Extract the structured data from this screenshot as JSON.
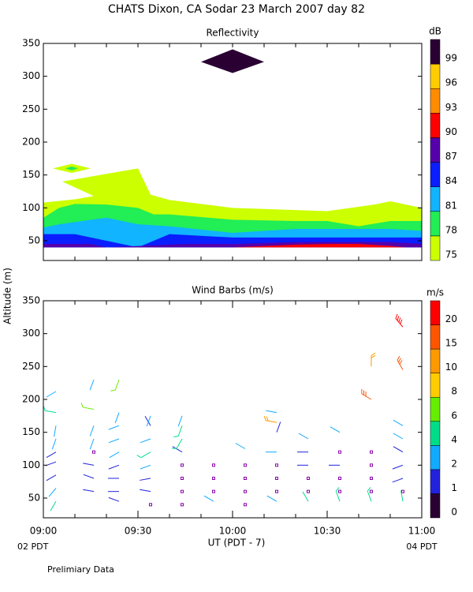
{
  "title": "CHATS Dixon, CA   Sodar  23 March 2007   day  82",
  "footnote": "Prelimiary Data",
  "chart_data": [
    {
      "type": "contour",
      "title": "Reflectivity",
      "unit": "dB",
      "xlim": [
        540,
        660
      ],
      "xminor": [
        540,
        550,
        560,
        570,
        580,
        590,
        600,
        610,
        620,
        630,
        640,
        650,
        660
      ],
      "ylim": [
        20,
        350
      ],
      "yticks": [
        50,
        100,
        150,
        200,
        250,
        300,
        350
      ],
      "levels": [
        75,
        78,
        81,
        84,
        87,
        90,
        93,
        96,
        99
      ],
      "colors": [
        "#ccff00",
        "#22ee55",
        "#11b4ff",
        "#0a1eff",
        "#5500aa",
        "#ff0000",
        "#ff8c00",
        "#ffcc00",
        "#2a0033"
      ],
      "regions": [
        {
          "level": 75,
          "x": [
            540,
            540,
            550,
            556,
            546,
            570,
            574,
            580,
            600,
            630,
            645,
            650,
            660,
            660
          ],
          "y": [
            40,
            108,
            113,
            118,
            140,
            160,
            120,
            112,
            100,
            95,
            105,
            110,
            100,
            40
          ]
        },
        {
          "level": 75,
          "x": [
            543,
            549,
            555,
            549
          ],
          "y": [
            160,
            167,
            160,
            153
          ]
        },
        {
          "level": 78,
          "x": [
            547,
            549,
            551,
            549
          ],
          "y": [
            160,
            163,
            160,
            157
          ]
        },
        {
          "level": 78,
          "x": [
            540,
            540,
            545,
            550,
            560,
            570,
            575,
            580,
            600,
            620,
            630,
            640,
            650,
            660,
            660
          ],
          "y": [
            40,
            85,
            100,
            106,
            105,
            100,
            90,
            90,
            82,
            80,
            80,
            72,
            80,
            80,
            40
          ]
        },
        {
          "level": 81,
          "x": [
            540,
            540,
            545,
            560,
            570,
            580,
            600,
            620,
            640,
            650,
            660,
            660
          ],
          "y": [
            40,
            70,
            75,
            85,
            75,
            72,
            62,
            68,
            68,
            68,
            65,
            40
          ]
        },
        {
          "level": 84,
          "x": [
            540,
            540,
            550,
            560,
            570,
            580,
            600,
            630,
            660,
            660
          ],
          "y": [
            40,
            60,
            60,
            50,
            40,
            60,
            55,
            55,
            55,
            40
          ]
        },
        {
          "level": 87,
          "x": [
            540,
            540,
            555,
            560,
            585,
            600,
            620,
            650,
            660,
            660
          ],
          "y": [
            40,
            45,
            45,
            40,
            45,
            45,
            48,
            48,
            45,
            40
          ]
        },
        {
          "level": 90,
          "x": [
            600,
            620,
            630,
            640,
            650,
            655
          ],
          "y": [
            40,
            44,
            45,
            45,
            42,
            40
          ]
        },
        {
          "level": 99,
          "x": [
            590,
            600,
            610,
            600
          ],
          "y": [
            322,
            341,
            322,
            305
          ]
        }
      ]
    },
    {
      "type": "barbs",
      "title": "Wind Barbs (m/s)",
      "unit": "m/s",
      "xlabel": "UT  (PDT - 7)",
      "ylabel": "Altitude (m)",
      "xlim_labels": [
        "02 PDT",
        "04 PDT"
      ],
      "xlim": [
        540,
        660
      ],
      "xticks": [
        {
          "value": 540,
          "label": "09:00"
        },
        {
          "value": 570,
          "label": "09:30"
        },
        {
          "value": 600,
          "label": "10:00"
        },
        {
          "value": 630,
          "label": "10:30"
        },
        {
          "value": 660,
          "label": "11:00"
        }
      ],
      "xminor": [
        550,
        560,
        580,
        590,
        610,
        620,
        640,
        650
      ],
      "ylim": [
        20,
        350
      ],
      "yticks": [
        50,
        100,
        150,
        200,
        250,
        300,
        350
      ],
      "levels": [
        0,
        1,
        2,
        4,
        6,
        8,
        10,
        15,
        20
      ],
      "colors": [
        "#2a0033",
        "#2222dd",
        "#11aaff",
        "#00dd88",
        "#66ee00",
        "#ffcc00",
        "#ff9900",
        "#ff5500",
        "#ff0000"
      ],
      "x": [
        544,
        544,
        544,
        544,
        544,
        544,
        544,
        544,
        544,
        556,
        556,
        556,
        556,
        556,
        556,
        556,
        556,
        564,
        564,
        564,
        564,
        564,
        564,
        564,
        564,
        564,
        574,
        574,
        574,
        574,
        574,
        574,
        574,
        574,
        584,
        584,
        584,
        584,
        584,
        584,
        584,
        584,
        594,
        594,
        594,
        594,
        604,
        604,
        604,
        604,
        604,
        614,
        614,
        614,
        614,
        614,
        614,
        614,
        614,
        624,
        624,
        624,
        624,
        624,
        624,
        634,
        634,
        634,
        634,
        634,
        634,
        644,
        644,
        644,
        644,
        644,
        644,
        644,
        654,
        654,
        654,
        654,
        654,
        654,
        654,
        654,
        654
      ],
      "altitude": [
        45,
        65,
        85,
        105,
        120,
        140,
        160,
        180,
        212,
        60,
        80,
        100,
        120,
        140,
        160,
        185,
        230,
        45,
        60,
        80,
        100,
        120,
        140,
        160,
        180,
        230,
        40,
        60,
        80,
        100,
        120,
        140,
        160,
        175,
        40,
        60,
        80,
        100,
        120,
        140,
        160,
        175,
        45,
        60,
        80,
        100,
        40,
        60,
        80,
        100,
        125,
        45,
        60,
        80,
        100,
        120,
        150,
        165,
        180,
        45,
        60,
        80,
        100,
        120,
        140,
        45,
        60,
        80,
        100,
        120,
        150,
        45,
        60,
        80,
        100,
        120,
        200,
        250,
        45,
        60,
        80,
        100,
        120,
        140,
        160,
        245,
        310
      ],
      "speed": [
        4,
        3,
        1.5,
        1.5,
        1.5,
        3,
        3,
        5,
        3,
        1.5,
        1.5,
        1.5,
        0,
        3,
        3,
        6,
        3,
        1.5,
        1.5,
        1.5,
        1.5,
        3,
        3,
        3,
        3,
        6,
        0,
        1.5,
        1.5,
        3,
        5,
        3,
        1.5,
        3,
        0,
        0,
        0,
        0,
        1.5,
        5,
        5,
        3,
        3,
        0,
        0,
        0,
        0,
        0,
        0,
        0,
        3,
        3,
        0,
        0,
        0,
        3,
        1.5,
        10,
        3,
        4,
        0,
        0,
        1.5,
        1.5,
        3,
        5,
        0,
        0,
        1.5,
        0,
        3,
        5,
        0,
        0,
        0,
        0,
        15,
        10,
        4,
        0,
        1.5,
        1.5,
        1.5,
        3,
        3,
        15,
        20
      ],
      "direction": [
        210,
        220,
        240,
        250,
        240,
        200,
        190,
        280,
        240,
        280,
        290,
        280,
        0,
        200,
        200,
        280,
        200,
        290,
        270,
        270,
        250,
        240,
        250,
        250,
        200,
        200,
        0,
        280,
        260,
        250,
        240,
        250,
        330,
        200,
        0,
        0,
        0,
        0,
        300,
        210,
        200,
        200,
        300,
        0,
        0,
        0,
        0,
        0,
        0,
        0,
        300,
        300,
        0,
        0,
        0,
        270,
        20,
        280,
        280,
        330,
        0,
        0,
        270,
        270,
        300,
        340,
        0,
        0,
        270,
        0,
        300,
        340,
        0,
        0,
        0,
        0,
        300,
        0,
        350,
        0,
        250,
        250,
        300,
        300,
        300,
        330,
        320
      ]
    }
  ]
}
